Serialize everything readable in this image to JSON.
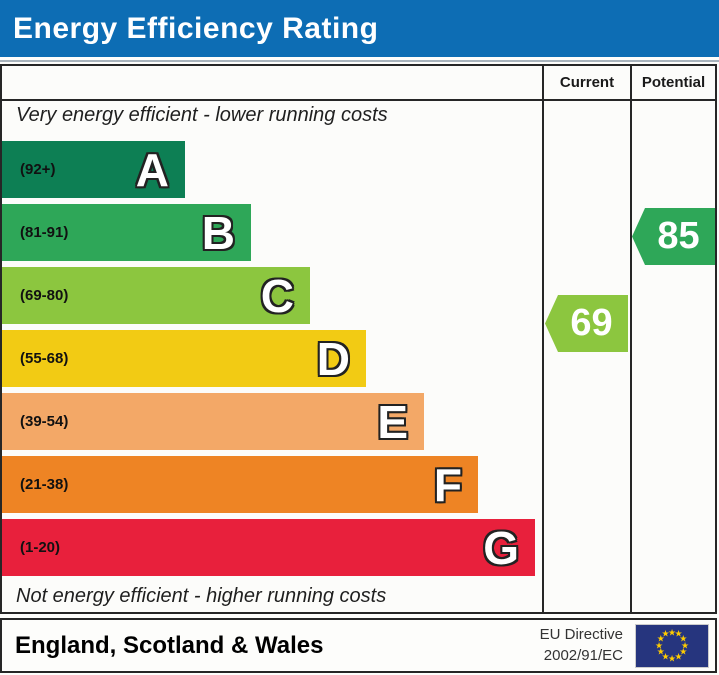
{
  "title_bar": {
    "title": "Energy Efficiency Rating",
    "background": "#0d6db4"
  },
  "header": {
    "current": "Current",
    "potential": "Potential"
  },
  "chart_data": {
    "type": "bar",
    "orientation": "horizontal",
    "title": "Energy Efficiency Rating",
    "bands": [
      {
        "letter": "A",
        "range_label": "(92+)",
        "min": 92,
        "max": 100,
        "color": "#0d7f54"
      },
      {
        "letter": "B",
        "range_label": "(81-91)",
        "min": 81,
        "max": 91,
        "color": "#2ea758"
      },
      {
        "letter": "C",
        "range_label": "(69-80)",
        "min": 69,
        "max": 80,
        "color": "#8cc63f"
      },
      {
        "letter": "D",
        "range_label": "(55-68)",
        "min": 55,
        "max": 68,
        "color": "#f2cb14"
      },
      {
        "letter": "E",
        "range_label": "(39-54)",
        "min": 39,
        "max": 54,
        "color": "#f3a867"
      },
      {
        "letter": "F",
        "range_label": "(21-38)",
        "min": 21,
        "max": 38,
        "color": "#ee8424"
      },
      {
        "letter": "G",
        "range_label": "(1-20)",
        "min": 1,
        "max": 20,
        "color": "#e8203c"
      }
    ],
    "markers": {
      "current": {
        "label": "Current",
        "value": 69,
        "band": "C",
        "color": "#8cc63f"
      },
      "potential": {
        "label": "Potential",
        "value": 85,
        "band": "B",
        "color": "#2ea758"
      }
    },
    "annotations": {
      "top": "Very energy efficient - lower running costs",
      "bottom": "Not energy efficient - higher running costs"
    }
  },
  "footer": {
    "region": "England, Scotland & Wales",
    "directive_line1": "EU Directive",
    "directive_line2": "2002/91/EC",
    "eu_flag": {
      "background": "#26357e",
      "star_color": "#ffcc00",
      "stars": 12
    }
  }
}
